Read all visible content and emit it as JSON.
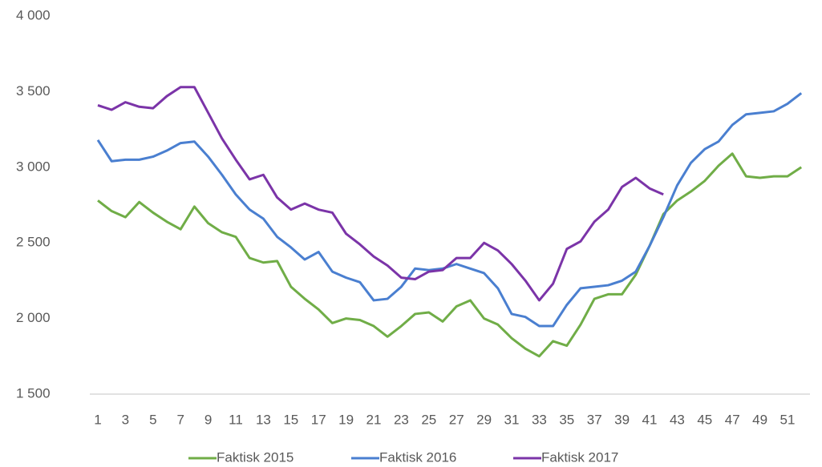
{
  "chart_data": {
    "type": "line",
    "categories": [
      1,
      null,
      3,
      null,
      5,
      null,
      7,
      null,
      9,
      null,
      11,
      null,
      13,
      null,
      15,
      null,
      17,
      null,
      19,
      null,
      21,
      null,
      23,
      null,
      25,
      null,
      27,
      null,
      29,
      null,
      31,
      null,
      33,
      null,
      35,
      null,
      37,
      null,
      39,
      null,
      41,
      null,
      43,
      null,
      45,
      null,
      47,
      null,
      49,
      null,
      51,
      null
    ],
    "ylim": [
      1500,
      4000
    ],
    "yticks": [
      {
        "value": 1500,
        "label": "1 500"
      },
      {
        "value": 2000,
        "label": "2 000"
      },
      {
        "value": 2500,
        "label": "2 500"
      },
      {
        "value": 3000,
        "label": "3 000"
      },
      {
        "value": 3500,
        "label": "3 500"
      },
      {
        "value": 4000,
        "label": "4 000"
      }
    ],
    "grid": false,
    "legend": "bottom",
    "series": [
      {
        "name": "Faktisk 2015",
        "color": "#70ad47",
        "values": [
          2780,
          2710,
          2670,
          2770,
          2700,
          2640,
          2590,
          2740,
          2630,
          2570,
          2540,
          2400,
          2370,
          2380,
          2210,
          2130,
          2060,
          1970,
          2000,
          1990,
          1950,
          1880,
          1950,
          2030,
          2040,
          1980,
          2080,
          2120,
          2000,
          1960,
          1870,
          1800,
          1750,
          1850,
          1820,
          1960,
          2130,
          2160,
          2160,
          2290,
          2480,
          2690,
          2780,
          2840,
          2910,
          3010,
          3090,
          2940,
          2930,
          2940,
          2940,
          3000
        ]
      },
      {
        "name": "Faktisk 2016",
        "color": "#4a7fd0",
        "values": [
          3180,
          3040,
          3050,
          3050,
          3070,
          3110,
          3160,
          3170,
          3070,
          2950,
          2820,
          2720,
          2660,
          2540,
          2470,
          2390,
          2440,
          2310,
          2270,
          2240,
          2120,
          2130,
          2210,
          2330,
          2320,
          2330,
          2360,
          2330,
          2300,
          2200,
          2030,
          2010,
          1950,
          1950,
          2090,
          2200,
          2210,
          2220,
          2250,
          2310,
          2480,
          2670,
          2880,
          3030,
          3120,
          3170,
          3280,
          3350,
          3360,
          3370,
          3420,
          3490
        ]
      },
      {
        "name": "Faktisk 2017",
        "color": "#7b34a8",
        "values": [
          3410,
          3380,
          3430,
          3400,
          3390,
          3470,
          3530,
          3530,
          3360,
          3190,
          3050,
          2920,
          2950,
          2800,
          2720,
          2760,
          2720,
          2700,
          2560,
          2490,
          2410,
          2350,
          2270,
          2260,
          2310,
          2320,
          2400,
          2400,
          2500,
          2450,
          2360,
          2250,
          2120,
          2230,
          2460,
          2510,
          2640,
          2720,
          2870,
          2930,
          2860,
          2820,
          null,
          null,
          null,
          null,
          null,
          null,
          null,
          null,
          null,
          null
        ]
      }
    ]
  }
}
